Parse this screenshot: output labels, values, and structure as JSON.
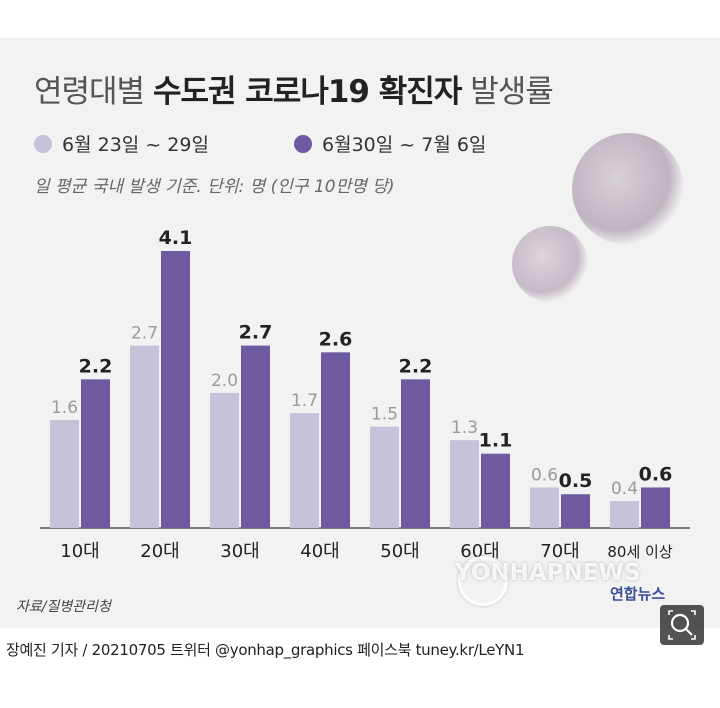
{
  "title": {
    "light_prefix": "연령대별 ",
    "bold": "수도권 코로나19 확진자",
    "light_suffix": " 발생률"
  },
  "legend": [
    {
      "label": "6월 23일 ~ 29일",
      "color": "#c6c2d9"
    },
    {
      "label": "6월30일 ~ 7월 6일",
      "color": "#6d5aa0"
    }
  ],
  "note": "일 평균 국내 발생 기준. 단위: 명 (인구 10만명 당)",
  "source": "자료/질병관리청",
  "logo": "연합뉴스",
  "watermark": "YONHAPNEWS",
  "credit": "장예진 기자 / 20210705 트위터 @yonhap_graphics  페이스북 tuney.kr/LeYN1",
  "zoom_icon": "search-icon",
  "chart_data": {
    "type": "bar",
    "categories": [
      "10대",
      "20대",
      "30대",
      "40대",
      "50대",
      "60대",
      "70대",
      "80세 이상"
    ],
    "series": [
      {
        "name": "6월 23일 ~ 29일",
        "values": [
          1.6,
          2.7,
          2.0,
          1.7,
          1.5,
          1.3,
          0.6,
          0.4
        ],
        "color": "#c6c2d9"
      },
      {
        "name": "6월30일 ~ 7월 6일",
        "values": [
          2.2,
          4.1,
          2.7,
          2.6,
          2.2,
          1.1,
          0.5,
          0.6
        ],
        "color": "#6d5aa0"
      }
    ],
    "title": "연령대별 수도권 코로나19 확진자 발생률",
    "ylabel": "명 (인구 10만명 당)",
    "ylim": [
      0,
      4.1
    ],
    "grid": false,
    "legend_position": "top-left"
  }
}
